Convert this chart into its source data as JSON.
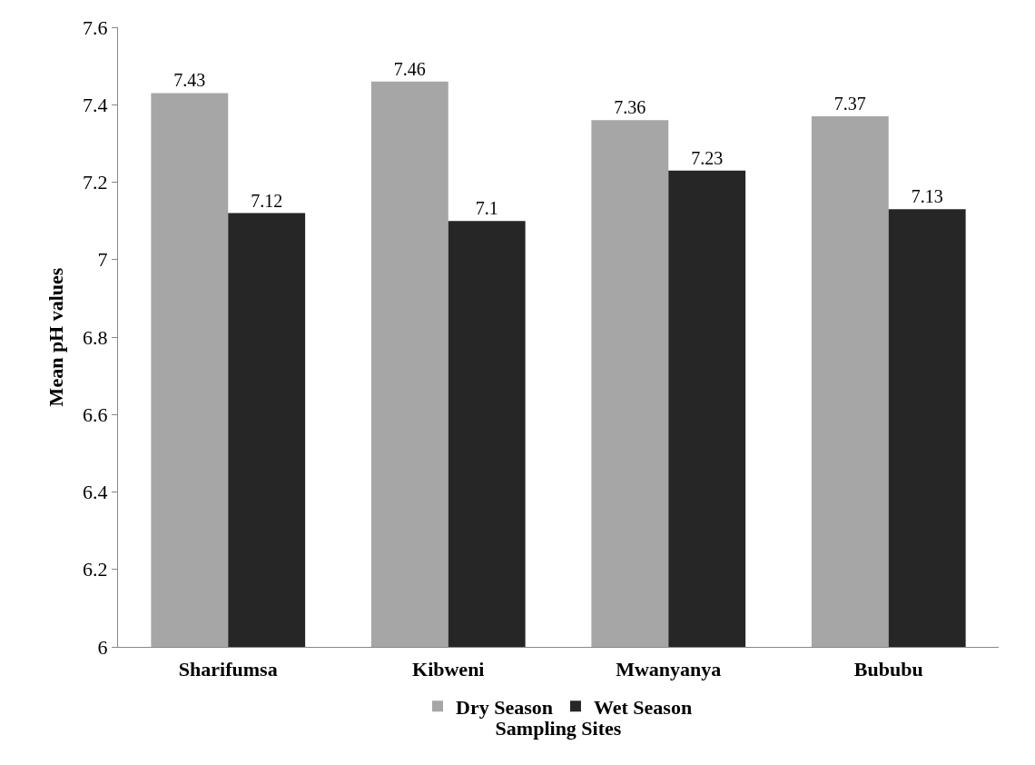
{
  "chart_data": {
    "type": "bar",
    "xlabel": "Sampling Sites",
    "ylabel": "Mean pH values",
    "categories": [
      "Sharifumsa",
      "Kibweni",
      "Mwanyanya",
      "Bububu"
    ],
    "series": [
      {
        "name": "Dry Season",
        "color": "#a6a6a6",
        "values": [
          7.43,
          7.46,
          7.36,
          7.37
        ]
      },
      {
        "name": "Wet Season",
        "color": "#262626",
        "values": [
          7.12,
          7.1,
          7.23,
          7.13
        ]
      }
    ],
    "ylim": [
      6,
      7.6
    ],
    "yticks": [
      6,
      6.2,
      6.4,
      6.6,
      6.8,
      7,
      7.2,
      7.4,
      7.6
    ],
    "legend": "bottom",
    "data_labels": true
  }
}
